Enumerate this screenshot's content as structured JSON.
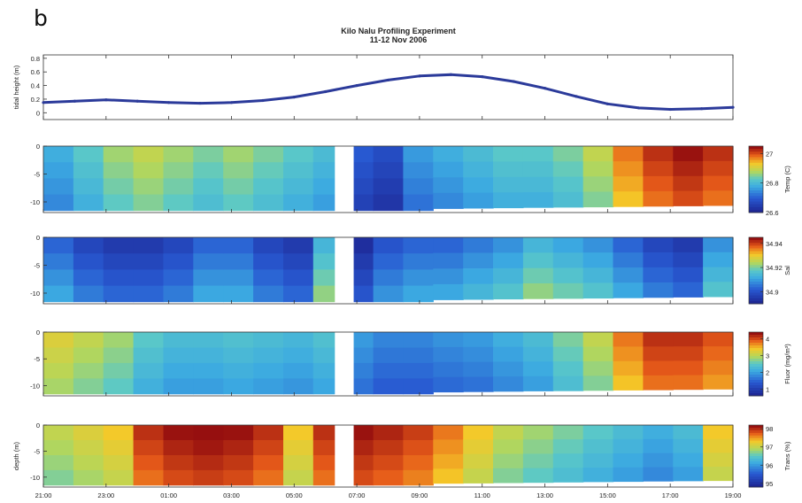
{
  "panel_label": "b",
  "chart_data": [
    {
      "type": "line",
      "title": "Kilo Nalu Profiling Experiment",
      "subtitle": "11-12 Nov 2006",
      "ylabel": "tidal height (m)",
      "yticks": [
        "0.8",
        "0.6",
        "0.4",
        "0.2",
        "0"
      ],
      "ylim": [
        -0.1,
        0.85
      ],
      "xlim": [
        21,
        43
      ],
      "grid": false,
      "series": [
        {
          "x": [
            21,
            22,
            23,
            24,
            25,
            26,
            27,
            28,
            29,
            30,
            31,
            32,
            33,
            34,
            35,
            36,
            37,
            38,
            39,
            40,
            41,
            42,
            43
          ],
          "values": [
            0.15,
            0.17,
            0.19,
            0.17,
            0.15,
            0.14,
            0.15,
            0.18,
            0.23,
            0.31,
            0.4,
            0.48,
            0.54,
            0.56,
            0.53,
            0.46,
            0.36,
            0.24,
            0.13,
            0.07,
            0.05,
            0.06,
            0.08
          ],
          "color": "#2b3a9a"
        }
      ]
    },
    {
      "type": "heatmap",
      "ylabel": "",
      "yticks": [
        "0",
        "-5",
        "-10"
      ],
      "colorbar_label": "Temp (C)",
      "colorbar_ticks": [
        "27",
        "26.8",
        "26.6"
      ],
      "colorbar_range": [
        26.6,
        27.05
      ],
      "levels": [
        0.35,
        0.45,
        0.55,
        0.6,
        0.55,
        0.5,
        0.55,
        0.5,
        0.45,
        0.4,
        0.15,
        0.1,
        0.3,
        0.35,
        0.4,
        0.45,
        0.45,
        0.5,
        0.6,
        0.8,
        0.9,
        0.95,
        0.9
      ]
    },
    {
      "type": "heatmap",
      "ylabel": "",
      "yticks": [
        "0",
        "-5",
        "-10"
      ],
      "colorbar_label": "Sal",
      "colorbar_ticks": [
        "34.94",
        "34.92",
        "34.9"
      ],
      "colorbar_range": [
        34.89,
        34.945
      ],
      "levels": [
        0.3,
        0.2,
        0.15,
        0.15,
        0.2,
        0.3,
        0.3,
        0.2,
        0.15,
        0.5,
        0.1,
        0.25,
        0.3,
        0.3,
        0.35,
        0.4,
        0.5,
        0.45,
        0.4,
        0.3,
        0.2,
        0.15,
        0.4
      ]
    },
    {
      "type": "heatmap",
      "ylabel": "",
      "yticks": [
        "0",
        "-5",
        "-10"
      ],
      "colorbar_label": "Fluor (mg/m³)",
      "colorbar_ticks": [
        "4",
        "3",
        "2",
        "1"
      ],
      "colorbar_range": [
        0.6,
        4.4
      ],
      "levels": [
        0.65,
        0.6,
        0.55,
        0.45,
        0.4,
        0.4,
        0.42,
        0.4,
        0.38,
        0.42,
        0.3,
        0.25,
        0.25,
        0.28,
        0.3,
        0.35,
        0.4,
        0.5,
        0.6,
        0.8,
        0.9,
        0.9,
        0.85
      ]
    },
    {
      "type": "heatmap",
      "ylabel": "depth (m)",
      "yticks": [
        "0",
        "-5",
        "-10"
      ],
      "colorbar_label": "Trans (%)",
      "colorbar_ticks": [
        "98",
        "97",
        "96",
        "95"
      ],
      "colorbar_range": [
        94.8,
        98.2
      ],
      "xticks": [
        "21:00",
        "23:00",
        "01:00",
        "03:00",
        "05:00",
        "07:00",
        "09:00",
        "11:00",
        "13:00",
        "15:00",
        "17:00",
        "19:00"
      ],
      "levels": [
        0.6,
        0.65,
        0.7,
        0.9,
        0.95,
        0.97,
        0.95,
        0.9,
        0.7,
        0.9,
        0.95,
        0.92,
        0.88,
        0.8,
        0.7,
        0.6,
        0.55,
        0.5,
        0.45,
        0.4,
        0.35,
        0.4,
        0.7
      ]
    }
  ]
}
